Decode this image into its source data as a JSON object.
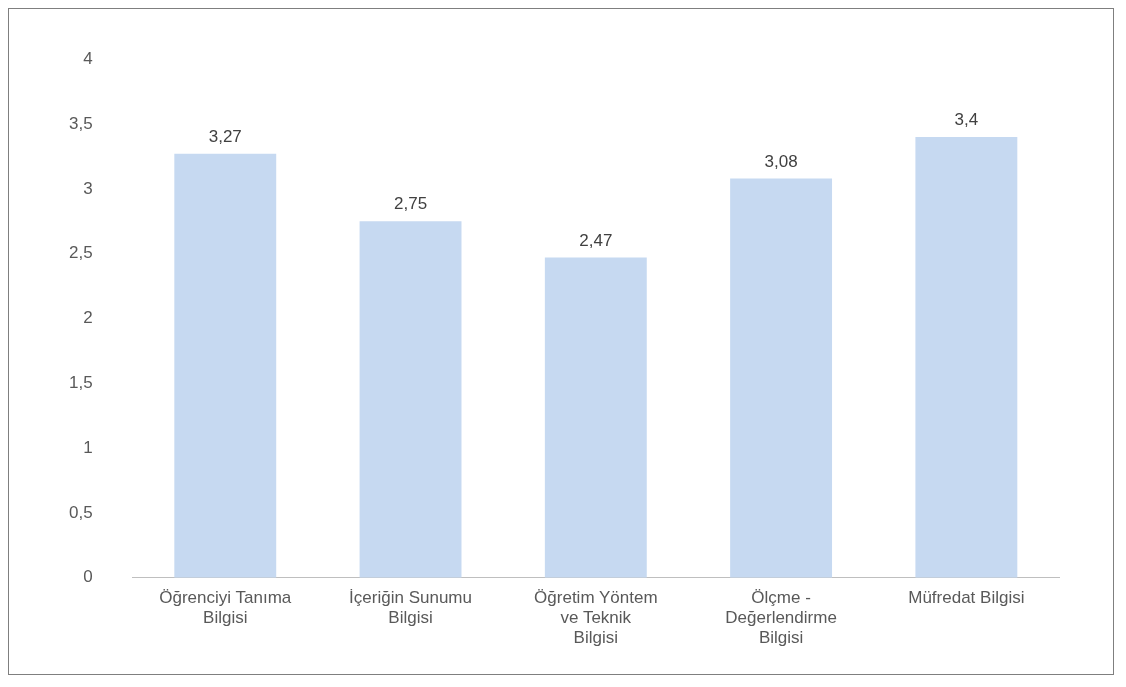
{
  "chart_data": {
    "type": "bar",
    "categories": [
      "Öğrenciyi Tanıma Bilgisi",
      "İçeriğin Sunumu Bilgisi",
      "Öğretim Yöntem ve Teknik Bilgisi",
      "Ölçme - Değerlendirme Bilgisi",
      "Müfredat Bilgisi"
    ],
    "values": [
      3.27,
      2.75,
      2.47,
      3.08,
      3.4
    ],
    "value_labels": [
      "3,27",
      "2,75",
      "2,47",
      "3,08",
      "3,4"
    ],
    "color": "#c6d9f1",
    "ylim": [
      0,
      4
    ],
    "yticks": [
      0,
      {
        "value": 0.5,
        "label": "0,5"
      },
      1,
      {
        "value": 1.5,
        "label": "1,5"
      },
      2,
      {
        "value": 2.5,
        "label": "2,5"
      },
      3,
      {
        "value": 3.5,
        "label": "3,5"
      },
      4
    ],
    "grid": false
  }
}
